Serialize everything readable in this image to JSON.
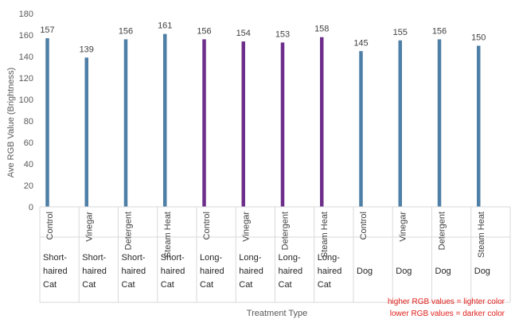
{
  "chart_data": {
    "type": "bar",
    "title": "",
    "ylabel": "Ave RGB Value (Brightness)",
    "xlabel": "Treatment Type",
    "ylim": [
      0,
      180
    ],
    "yticks": [
      0,
      20,
      40,
      60,
      80,
      100,
      120,
      140,
      160,
      180
    ],
    "grid": false,
    "categories": [
      {
        "treatment": "Control",
        "group": [
          "Short-",
          "haired",
          "Cat"
        ]
      },
      {
        "treatment": "Vinegar",
        "group": [
          "Short-",
          "haired",
          "Cat"
        ]
      },
      {
        "treatment": "Detergent",
        "group": [
          "Short-",
          "haired",
          "Cat"
        ]
      },
      {
        "treatment": "Steam Heat",
        "group": [
          "Short-",
          "haired",
          "Cat"
        ]
      },
      {
        "treatment": "Control",
        "group": [
          "Long-",
          "haired",
          "Cat"
        ]
      },
      {
        "treatment": "Vinegar",
        "group": [
          "Long-",
          "haired",
          "Cat"
        ]
      },
      {
        "treatment": "Detergent",
        "group": [
          "Long-",
          "haired",
          "Cat"
        ]
      },
      {
        "treatment": "Steam Heat",
        "group": [
          "Long-",
          "haired",
          "Cat"
        ]
      },
      {
        "treatment": "Control",
        "group": [
          "Dog"
        ]
      },
      {
        "treatment": "Vinegar",
        "group": [
          "Dog"
        ]
      },
      {
        "treatment": "Detergent",
        "group": [
          "Dog"
        ]
      },
      {
        "treatment": "Steam Heat",
        "group": [
          "Dog"
        ]
      }
    ],
    "values": [
      157,
      139,
      156,
      161,
      156,
      154,
      153,
      158,
      145,
      155,
      156,
      150
    ],
    "bar_colors": [
      "#4e7fa6",
      "#4e7fa6",
      "#4e7fa6",
      "#4e7fa6",
      "#6c2e8a",
      "#6c2e8a",
      "#6c2e8a",
      "#6c2e8a",
      "#4e7fa6",
      "#4e7fa6",
      "#4e7fa6",
      "#4e7fa6"
    ],
    "notes": [
      "higher RGB values = lighter color",
      "lower RGB values = darker color"
    ]
  }
}
